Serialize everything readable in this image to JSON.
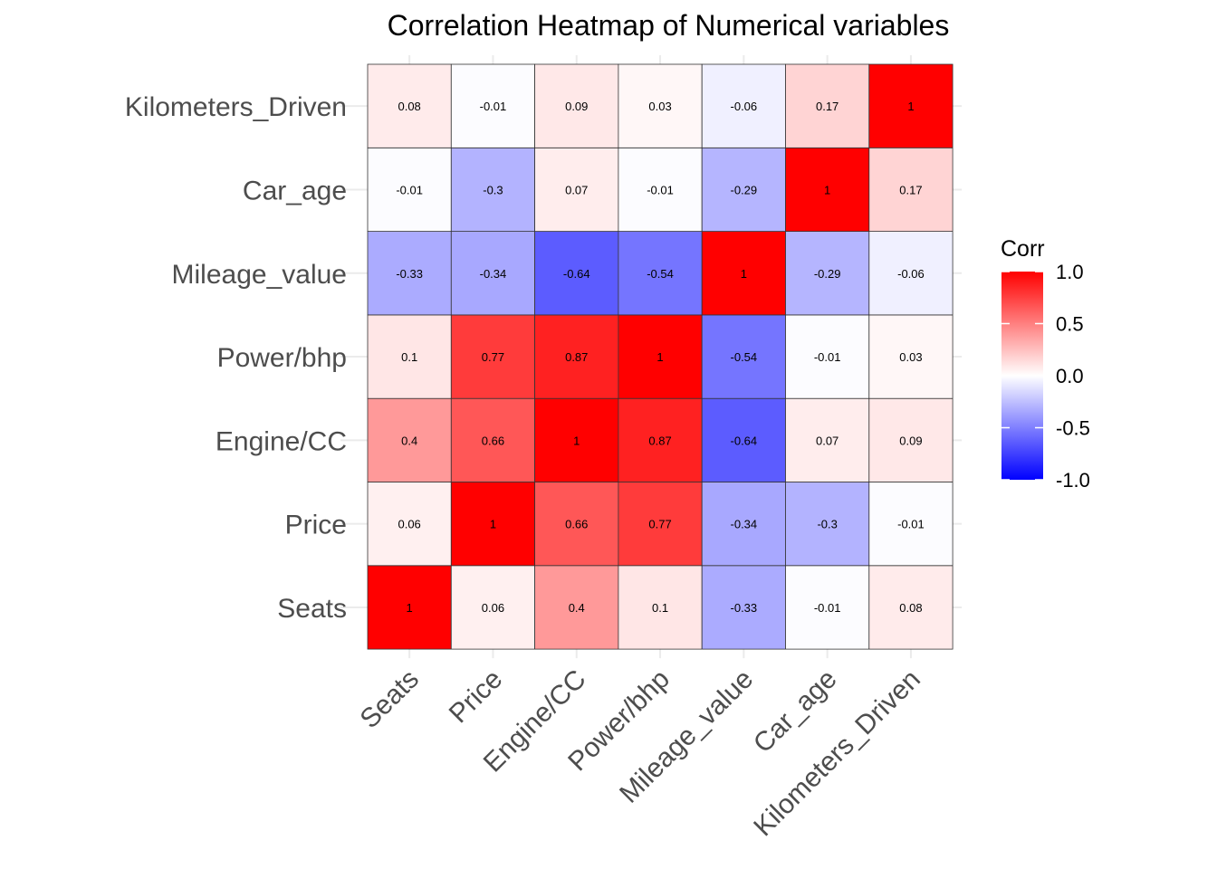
{
  "chart_data": {
    "type": "heatmap",
    "title": "Correlation Heatmap of Numerical variables",
    "x_categories": [
      "Seats",
      "Price",
      "Engine/CC",
      "Power/bhp",
      "Mileage_value",
      "Car_age",
      "Kilometers_Driven"
    ],
    "y_categories": [
      "Seats",
      "Price",
      "Engine/CC",
      "Power/bhp",
      "Mileage_value",
      "Car_age",
      "Kilometers_Driven"
    ],
    "values": [
      [
        1,
        0.06,
        0.4,
        0.1,
        -0.33,
        -0.01,
        0.08
      ],
      [
        0.06,
        1,
        0.66,
        0.77,
        -0.34,
        -0.3,
        -0.01
      ],
      [
        0.4,
        0.66,
        1,
        0.87,
        -0.64,
        0.07,
        0.09
      ],
      [
        0.1,
        0.77,
        0.87,
        1,
        -0.54,
        -0.01,
        0.03
      ],
      [
        -0.33,
        -0.34,
        -0.64,
        -0.54,
        1,
        -0.29,
        -0.06
      ],
      [
        -0.01,
        -0.3,
        0.07,
        -0.01,
        -0.29,
        1,
        0.17
      ],
      [
        0.08,
        -0.01,
        0.09,
        0.03,
        -0.06,
        0.17,
        1
      ]
    ],
    "labels": [
      [
        "1",
        "0.06",
        "0.4",
        "0.1",
        "-0.33",
        "-0.01",
        "0.08"
      ],
      [
        "0.06",
        "1",
        "0.66",
        "0.77",
        "-0.34",
        "-0.3",
        "-0.01"
      ],
      [
        "0.4",
        "0.66",
        "1",
        "0.87",
        "-0.64",
        "0.07",
        "0.09"
      ],
      [
        "0.1",
        "0.77",
        "0.87",
        "1",
        "-0.54",
        "-0.01",
        "0.03"
      ],
      [
        "-0.33",
        "-0.34",
        "-0.64",
        "-0.54",
        "1",
        "-0.29",
        "-0.06"
      ],
      [
        "-0.01",
        "-0.3",
        "0.07",
        "-0.01",
        "-0.29",
        "1",
        "0.17"
      ],
      [
        "0.08",
        "-0.01",
        "0.09",
        "0.03",
        "-0.06",
        "0.17",
        "1"
      ]
    ],
    "legend": {
      "title": "Corr",
      "ticks": [
        1.0,
        0.5,
        0.0,
        -0.5,
        -1.0
      ],
      "tick_labels": [
        "1.0",
        "0.5",
        "0.0",
        "-0.5",
        "-1.0"
      ],
      "placement": "right"
    },
    "value_range": [
      -1,
      1
    ],
    "colors": {
      "low": "#0000ff",
      "mid": "#ffffff",
      "high": "#ff0000",
      "grid": "#ebebeb",
      "cell_border": "#333333"
    },
    "grid": true
  }
}
